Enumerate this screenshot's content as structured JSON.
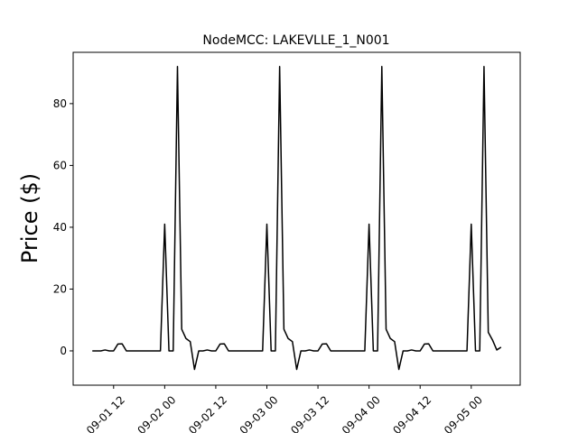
{
  "chart_data": {
    "type": "line",
    "title": "NodeMCC: LAKEVLLE_1_N001",
    "y_label": "Price ($)",
    "x": [
      "09-01 07",
      "09-01 08",
      "09-01 09",
      "09-01 10",
      "09-01 11",
      "09-01 12",
      "09-01 13",
      "09-01 14",
      "09-01 15",
      "09-01 16",
      "09-01 17",
      "09-01 18",
      "09-01 19",
      "09-01 20",
      "09-01 21",
      "09-01 22",
      "09-01 23",
      "09-02 00",
      "09-02 01",
      "09-02 02",
      "09-02 03",
      "09-02 04",
      "09-02 05",
      "09-02 06",
      "09-02 07",
      "09-02 08",
      "09-02 09",
      "09-02 10",
      "09-02 11",
      "09-02 12",
      "09-02 13",
      "09-02 14",
      "09-02 15",
      "09-02 16",
      "09-02 17",
      "09-02 18",
      "09-02 19",
      "09-02 20",
      "09-02 21",
      "09-02 22",
      "09-02 23",
      "09-03 00",
      "09-03 01",
      "09-03 02",
      "09-03 03",
      "09-03 04",
      "09-03 05",
      "09-03 06",
      "09-03 07",
      "09-03 08",
      "09-03 09",
      "09-03 10",
      "09-03 11",
      "09-03 12",
      "09-03 13",
      "09-03 14",
      "09-03 15",
      "09-03 16",
      "09-03 17",
      "09-03 18",
      "09-03 19",
      "09-03 20",
      "09-03 21",
      "09-03 22",
      "09-03 23",
      "09-04 00",
      "09-04 01",
      "09-04 02",
      "09-04 03",
      "09-04 04",
      "09-04 05",
      "09-04 06",
      "09-04 07",
      "09-04 08",
      "09-04 09",
      "09-04 10",
      "09-04 11",
      "09-04 12",
      "09-04 13",
      "09-04 14",
      "09-04 15",
      "09-04 16",
      "09-04 17",
      "09-04 18",
      "09-04 19",
      "09-04 20",
      "09-04 21",
      "09-04 22",
      "09-04 23",
      "09-05 00",
      "09-05 01",
      "09-05 02",
      "09-05 03",
      "09-05 04",
      "09-05 05",
      "09-05 06",
      "09-05 07"
    ],
    "values": [
      0,
      0,
      0,
      0.3,
      0,
      0,
      2.2,
      2.3,
      0,
      0,
      0,
      0,
      0,
      0,
      0,
      0,
      0,
      41,
      0,
      0,
      92,
      7,
      4,
      3,
      -6,
      0,
      0,
      0.3,
      0,
      0,
      2.2,
      2.3,
      0,
      0,
      0,
      0,
      0,
      0,
      0,
      0,
      0,
      41,
      0,
      0,
      92,
      7,
      4,
      3,
      -6,
      0,
      0,
      0.3,
      0,
      0,
      2.2,
      2.3,
      0,
      0,
      0,
      0,
      0,
      0,
      0,
      0,
      0,
      41,
      0,
      0,
      92,
      7,
      4,
      3,
      -6,
      0,
      0,
      0.3,
      0,
      0,
      2.2,
      2.3,
      0,
      0,
      0,
      0,
      0,
      0,
      0,
      0,
      0,
      41,
      0,
      0,
      92,
      6,
      3.5,
      0.3,
      1.2
    ],
    "color": "#000000",
    "xlim": [
      "09-01 02:30",
      "09-05 11:30"
    ],
    "xticks": [
      "09-01 12",
      "09-02 00",
      "09-02 12",
      "09-03 00",
      "09-03 12",
      "09-04 00",
      "09-04 12",
      "09-05 00"
    ],
    "ylim": [
      -11.1,
      96.6
    ],
    "yticks": [
      0,
      20,
      40,
      60,
      80
    ]
  }
}
